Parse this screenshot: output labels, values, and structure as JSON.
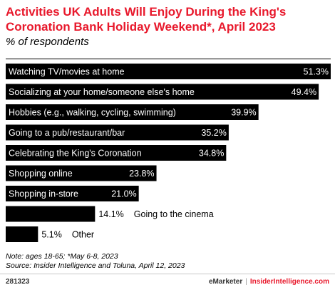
{
  "header": {
    "title": "Activities UK Adults Will Enjoy During the King's Coronation Bank Holiday Weekend*, April 2023",
    "subtitle": "% of respondents"
  },
  "chart_data": {
    "type": "bar",
    "orientation": "horizontal",
    "categories": [
      "Watching TV/movies at home",
      "Socializing at your home/someone else's home",
      "Hobbies (e.g., walking, cycling, swimming)",
      "Going to a pub/restaurant/bar",
      "Celebrating the King's Coronation",
      "Shopping online",
      "Shopping in-store",
      "Going to the cinema",
      "Other"
    ],
    "values": [
      51.3,
      49.4,
      39.9,
      35.2,
      34.8,
      23.8,
      21.0,
      14.1,
      5.1
    ],
    "value_labels": [
      "51.3%",
      "49.4%",
      "39.9%",
      "35.2%",
      "34.8%",
      "23.8%",
      "21.0%",
      "14.1%",
      "5.1%"
    ],
    "xlim": [
      0,
      51.3
    ],
    "bar_color": "#000000",
    "label_color_inside": "#ffffff",
    "grid": false,
    "legend": "none"
  },
  "footnote": {
    "line1": "Note: ages 18-65; *May 6-8, 2023",
    "line2": "Source: Insider Intelligence and Toluna, April 12, 2023"
  },
  "footer": {
    "chart_id": "281323",
    "brand_left": "eMarketer",
    "separator": "|",
    "brand_right": "InsiderIntelligence.com"
  },
  "colors": {
    "title": "#e8192c",
    "accent": "#e8192c"
  }
}
